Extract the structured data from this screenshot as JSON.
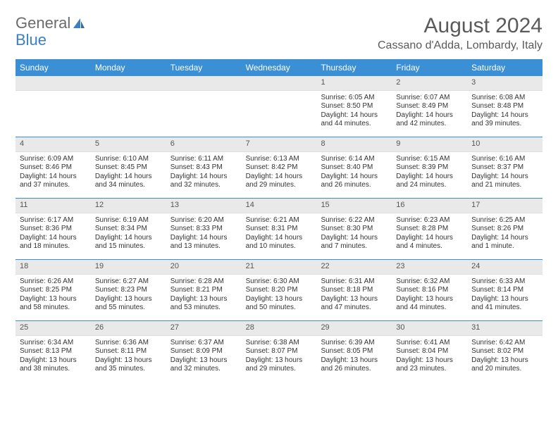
{
  "brand": {
    "part1": "General",
    "part2": "Blue"
  },
  "title": "August 2024",
  "location": "Cassano d'Adda, Lombardy, Italy",
  "colors": {
    "header_bg": "#3b8fd4",
    "header_text": "#ffffff",
    "daynum_bg": "#e9e9e9",
    "border": "#3b8fd4",
    "title_color": "#5a5a5a",
    "logo_gray": "#6b6b6b",
    "logo_blue": "#3b7fc4"
  },
  "weekdays": [
    "Sunday",
    "Monday",
    "Tuesday",
    "Wednesday",
    "Thursday",
    "Friday",
    "Saturday"
  ],
  "weeks": [
    [
      {
        "n": "",
        "sr": "",
        "ss": "",
        "dl": ""
      },
      {
        "n": "",
        "sr": "",
        "ss": "",
        "dl": ""
      },
      {
        "n": "",
        "sr": "",
        "ss": "",
        "dl": ""
      },
      {
        "n": "",
        "sr": "",
        "ss": "",
        "dl": ""
      },
      {
        "n": "1",
        "sr": "Sunrise: 6:05 AM",
        "ss": "Sunset: 8:50 PM",
        "dl": "Daylight: 14 hours and 44 minutes."
      },
      {
        "n": "2",
        "sr": "Sunrise: 6:07 AM",
        "ss": "Sunset: 8:49 PM",
        "dl": "Daylight: 14 hours and 42 minutes."
      },
      {
        "n": "3",
        "sr": "Sunrise: 6:08 AM",
        "ss": "Sunset: 8:48 PM",
        "dl": "Daylight: 14 hours and 39 minutes."
      }
    ],
    [
      {
        "n": "4",
        "sr": "Sunrise: 6:09 AM",
        "ss": "Sunset: 8:46 PM",
        "dl": "Daylight: 14 hours and 37 minutes."
      },
      {
        "n": "5",
        "sr": "Sunrise: 6:10 AM",
        "ss": "Sunset: 8:45 PM",
        "dl": "Daylight: 14 hours and 34 minutes."
      },
      {
        "n": "6",
        "sr": "Sunrise: 6:11 AM",
        "ss": "Sunset: 8:43 PM",
        "dl": "Daylight: 14 hours and 32 minutes."
      },
      {
        "n": "7",
        "sr": "Sunrise: 6:13 AM",
        "ss": "Sunset: 8:42 PM",
        "dl": "Daylight: 14 hours and 29 minutes."
      },
      {
        "n": "8",
        "sr": "Sunrise: 6:14 AM",
        "ss": "Sunset: 8:40 PM",
        "dl": "Daylight: 14 hours and 26 minutes."
      },
      {
        "n": "9",
        "sr": "Sunrise: 6:15 AM",
        "ss": "Sunset: 8:39 PM",
        "dl": "Daylight: 14 hours and 24 minutes."
      },
      {
        "n": "10",
        "sr": "Sunrise: 6:16 AM",
        "ss": "Sunset: 8:37 PM",
        "dl": "Daylight: 14 hours and 21 minutes."
      }
    ],
    [
      {
        "n": "11",
        "sr": "Sunrise: 6:17 AM",
        "ss": "Sunset: 8:36 PM",
        "dl": "Daylight: 14 hours and 18 minutes."
      },
      {
        "n": "12",
        "sr": "Sunrise: 6:19 AM",
        "ss": "Sunset: 8:34 PM",
        "dl": "Daylight: 14 hours and 15 minutes."
      },
      {
        "n": "13",
        "sr": "Sunrise: 6:20 AM",
        "ss": "Sunset: 8:33 PM",
        "dl": "Daylight: 14 hours and 13 minutes."
      },
      {
        "n": "14",
        "sr": "Sunrise: 6:21 AM",
        "ss": "Sunset: 8:31 PM",
        "dl": "Daylight: 14 hours and 10 minutes."
      },
      {
        "n": "15",
        "sr": "Sunrise: 6:22 AM",
        "ss": "Sunset: 8:30 PM",
        "dl": "Daylight: 14 hours and 7 minutes."
      },
      {
        "n": "16",
        "sr": "Sunrise: 6:23 AM",
        "ss": "Sunset: 8:28 PM",
        "dl": "Daylight: 14 hours and 4 minutes."
      },
      {
        "n": "17",
        "sr": "Sunrise: 6:25 AM",
        "ss": "Sunset: 8:26 PM",
        "dl": "Daylight: 14 hours and 1 minute."
      }
    ],
    [
      {
        "n": "18",
        "sr": "Sunrise: 6:26 AM",
        "ss": "Sunset: 8:25 PM",
        "dl": "Daylight: 13 hours and 58 minutes."
      },
      {
        "n": "19",
        "sr": "Sunrise: 6:27 AM",
        "ss": "Sunset: 8:23 PM",
        "dl": "Daylight: 13 hours and 55 minutes."
      },
      {
        "n": "20",
        "sr": "Sunrise: 6:28 AM",
        "ss": "Sunset: 8:21 PM",
        "dl": "Daylight: 13 hours and 53 minutes."
      },
      {
        "n": "21",
        "sr": "Sunrise: 6:30 AM",
        "ss": "Sunset: 8:20 PM",
        "dl": "Daylight: 13 hours and 50 minutes."
      },
      {
        "n": "22",
        "sr": "Sunrise: 6:31 AM",
        "ss": "Sunset: 8:18 PM",
        "dl": "Daylight: 13 hours and 47 minutes."
      },
      {
        "n": "23",
        "sr": "Sunrise: 6:32 AM",
        "ss": "Sunset: 8:16 PM",
        "dl": "Daylight: 13 hours and 44 minutes."
      },
      {
        "n": "24",
        "sr": "Sunrise: 6:33 AM",
        "ss": "Sunset: 8:14 PM",
        "dl": "Daylight: 13 hours and 41 minutes."
      }
    ],
    [
      {
        "n": "25",
        "sr": "Sunrise: 6:34 AM",
        "ss": "Sunset: 8:13 PM",
        "dl": "Daylight: 13 hours and 38 minutes."
      },
      {
        "n": "26",
        "sr": "Sunrise: 6:36 AM",
        "ss": "Sunset: 8:11 PM",
        "dl": "Daylight: 13 hours and 35 minutes."
      },
      {
        "n": "27",
        "sr": "Sunrise: 6:37 AM",
        "ss": "Sunset: 8:09 PM",
        "dl": "Daylight: 13 hours and 32 minutes."
      },
      {
        "n": "28",
        "sr": "Sunrise: 6:38 AM",
        "ss": "Sunset: 8:07 PM",
        "dl": "Daylight: 13 hours and 29 minutes."
      },
      {
        "n": "29",
        "sr": "Sunrise: 6:39 AM",
        "ss": "Sunset: 8:05 PM",
        "dl": "Daylight: 13 hours and 26 minutes."
      },
      {
        "n": "30",
        "sr": "Sunrise: 6:41 AM",
        "ss": "Sunset: 8:04 PM",
        "dl": "Daylight: 13 hours and 23 minutes."
      },
      {
        "n": "31",
        "sr": "Sunrise: 6:42 AM",
        "ss": "Sunset: 8:02 PM",
        "dl": "Daylight: 13 hours and 20 minutes."
      }
    ]
  ]
}
